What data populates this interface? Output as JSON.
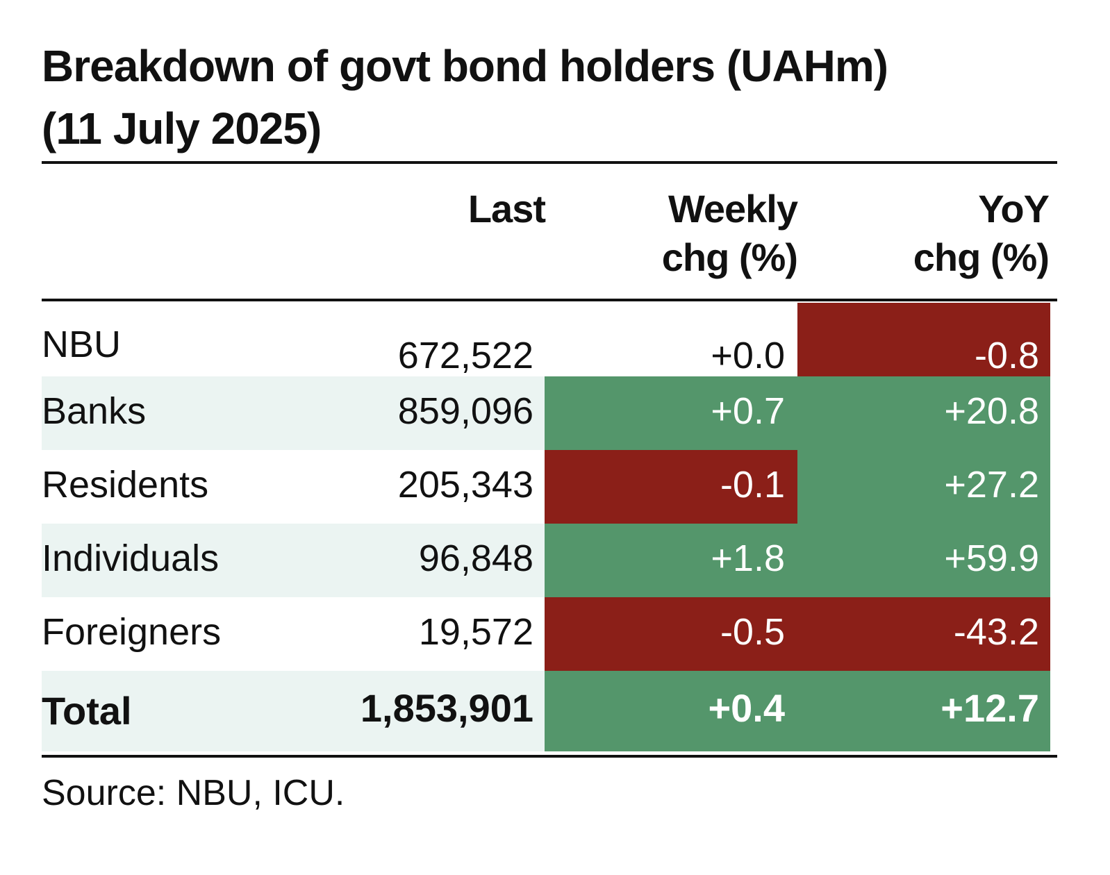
{
  "chart_data": {
    "type": "table",
    "title": [
      "Breakdown of govt bond holders (UAHm)",
      "(11 July 2025)"
    ],
    "columns": [
      {
        "key": "name",
        "label": []
      },
      {
        "key": "last",
        "label": [
          "Last"
        ]
      },
      {
        "key": "weekly",
        "label": [
          "Weekly",
          "chg (%)"
        ]
      },
      {
        "key": "yoy",
        "label": [
          "YoY",
          "chg (%)"
        ]
      }
    ],
    "rows": [
      {
        "name": "NBU",
        "last": "672,522",
        "weekly": "+0.0",
        "yoy": "-0.8",
        "weekly_sign": "neutral",
        "yoy_sign": "neg"
      },
      {
        "name": "Banks",
        "last": "859,096",
        "weekly": "+0.7",
        "yoy": "+20.8",
        "weekly_sign": "pos",
        "yoy_sign": "pos"
      },
      {
        "name": "Residents",
        "last": "205,343",
        "weekly": "-0.1",
        "yoy": "+27.2",
        "weekly_sign": "neg",
        "yoy_sign": "pos"
      },
      {
        "name": "Individuals",
        "last": "96,848",
        "weekly": "+1.8",
        "yoy": "+59.9",
        "weekly_sign": "pos",
        "yoy_sign": "pos"
      },
      {
        "name": "Foreigners",
        "last": "19,572",
        "weekly": "-0.5",
        "yoy": "-43.2",
        "weekly_sign": "neg",
        "yoy_sign": "neg"
      }
    ],
    "total": {
      "name": "Total",
      "last": "1,853,901",
      "weekly": "+0.4",
      "yoy": "+12.7",
      "weekly_sign": "pos",
      "yoy_sign": "pos"
    },
    "source": "Source: NBU, ICU."
  },
  "colors": {
    "positive": "#54966b",
    "negative": "#8b1f18",
    "stripe": "#ebf4f2",
    "text": "#111111"
  }
}
